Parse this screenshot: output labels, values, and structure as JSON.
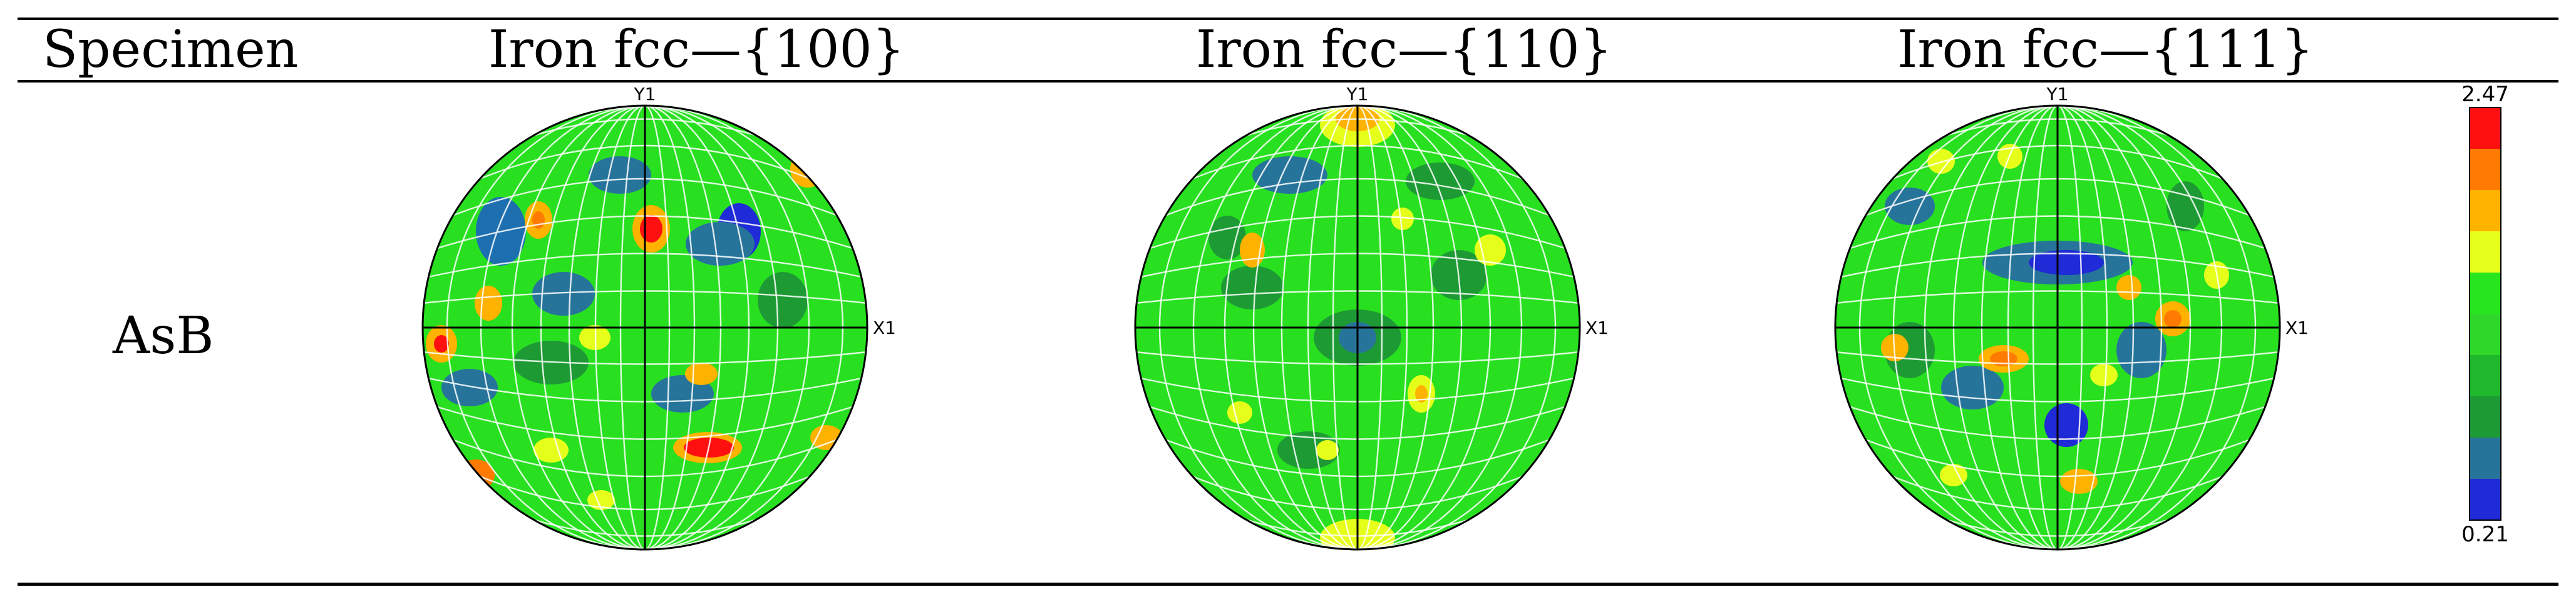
{
  "table": {
    "header": {
      "specimen": "Specimen",
      "col_100": "Iron fcc—{100}",
      "col_110": "Iron fcc—{110}",
      "col_111": "Iron fcc—{111}"
    },
    "row_label": "AsB"
  },
  "axes": {
    "y": "Y1",
    "x": "X1"
  },
  "colorbar": {
    "max": "2.47",
    "min": "0.21",
    "colors": [
      "#ff1010",
      "#ff7a00",
      "#ffb200",
      "#e6ff1a",
      "#27e51f",
      "#2fd72a",
      "#1fb72b",
      "#1e9a35",
      "#27749b",
      "#1f2bd6"
    ]
  },
  "pole_figures": [
    {
      "name": "pole-figure-100",
      "dominant": "#28e020"
    },
    {
      "name": "pole-figure-110",
      "dominant": "#28e020"
    },
    {
      "name": "pole-figure-111",
      "dominant": "#28e020"
    }
  ]
}
